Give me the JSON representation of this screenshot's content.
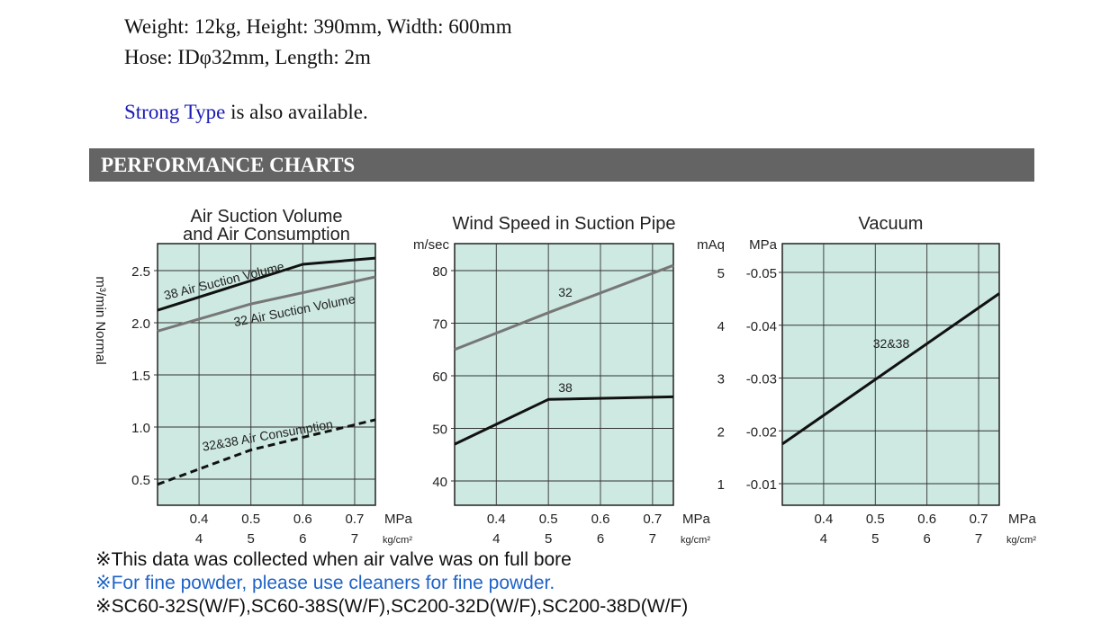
{
  "specs": {
    "line1": "Weight: 12kg, Height: 390mm, Width: 600mm",
    "line2": "Hose: IDφ32mm, Length: 2m"
  },
  "note": {
    "link": "Strong Type",
    "rest": " is also available."
  },
  "section_header": "PERFORMANCE CHARTS",
  "chart_bg": "#cde9e1",
  "chart_data": [
    {
      "type": "line",
      "title": [
        "Air Suction Volume",
        "and Air Consumption"
      ],
      "ylabel": "m³/min Normal",
      "yunit": "",
      "yticks": [
        "0.5",
        "1.0",
        "1.5",
        "2.0",
        "2.5"
      ],
      "ylim": [
        0.5,
        2.5
      ],
      "xlim": [
        0.32,
        0.74
      ],
      "xticks_mpa": [
        "0.4",
        "0.5",
        "0.6",
        "0.7"
      ],
      "xticks_kg": [
        "4",
        "5",
        "6",
        "7"
      ],
      "xunit_mpa": "MPa",
      "xunit_kg": "kg/cm²",
      "series": [
        {
          "name": "38 Air Suction Volume",
          "style": "solid",
          "color": "#111111",
          "x": [
            0.32,
            0.6,
            0.74
          ],
          "y": [
            2.12,
            2.56,
            2.62
          ]
        },
        {
          "name": "32 Air Suction Volume",
          "style": "solid",
          "color": "#777777",
          "x": [
            0.32,
            0.5,
            0.74
          ],
          "y": [
            1.92,
            2.18,
            2.44
          ]
        },
        {
          "name": "32&38 Air Consumption",
          "style": "dashed",
          "color": "#111111",
          "x": [
            0.32,
            0.5,
            0.74
          ],
          "y": [
            0.45,
            0.78,
            1.07
          ]
        }
      ]
    },
    {
      "type": "line",
      "title": [
        "Wind Speed in Suction Pipe"
      ],
      "ylabel": "",
      "yunit": "m/sec",
      "yticks": [
        "40",
        "50",
        "60",
        "70",
        "80"
      ],
      "ylim": [
        40,
        80
      ],
      "xlim": [
        0.32,
        0.74
      ],
      "xticks_mpa": [
        "0.4",
        "0.5",
        "0.6",
        "0.7"
      ],
      "xticks_kg": [
        "4",
        "5",
        "6",
        "7"
      ],
      "xunit_mpa": "MPa",
      "xunit_kg": "kg/cm²",
      "series": [
        {
          "name": "32",
          "style": "solid",
          "color": "#777777",
          "x": [
            0.32,
            0.5,
            0.74
          ],
          "y": [
            65,
            72,
            81
          ]
        },
        {
          "name": "38",
          "style": "solid",
          "color": "#111111",
          "x": [
            0.32,
            0.5,
            0.74
          ],
          "y": [
            47,
            55.5,
            56
          ]
        }
      ]
    },
    {
      "type": "line",
      "title": [
        "Vacuum"
      ],
      "ylabel": "",
      "yunit": "mAq",
      "yunit2": "MPa",
      "yticks": [
        "1",
        "2",
        "3",
        "4",
        "5"
      ],
      "yticks2": [
        "-0.01",
        "-0.02",
        "-0.03",
        "-0.04",
        "-0.05"
      ],
      "ylim": [
        1,
        5
      ],
      "xlim": [
        0.32,
        0.74
      ],
      "xticks_mpa": [
        "0.4",
        "0.5",
        "0.6",
        "0.7"
      ],
      "xticks_kg": [
        "4",
        "5",
        "6",
        "7"
      ],
      "xunit_mpa": "MPa",
      "xunit_kg": "kg/cm²",
      "series": [
        {
          "name": "32&38",
          "style": "solid",
          "color": "#111111",
          "x": [
            0.32,
            0.74
          ],
          "y": [
            1.75,
            4.6
          ]
        }
      ]
    }
  ],
  "footnotes": {
    "line1": "※This data was collected when air valve was on full bore",
    "line2": "※For fine powder, please use cleaners for fine powder.",
    "line3": "※SC60-32S(W/F),SC60-38S(W/F),SC200-32D(W/F),SC200-38D(W/F)"
  }
}
